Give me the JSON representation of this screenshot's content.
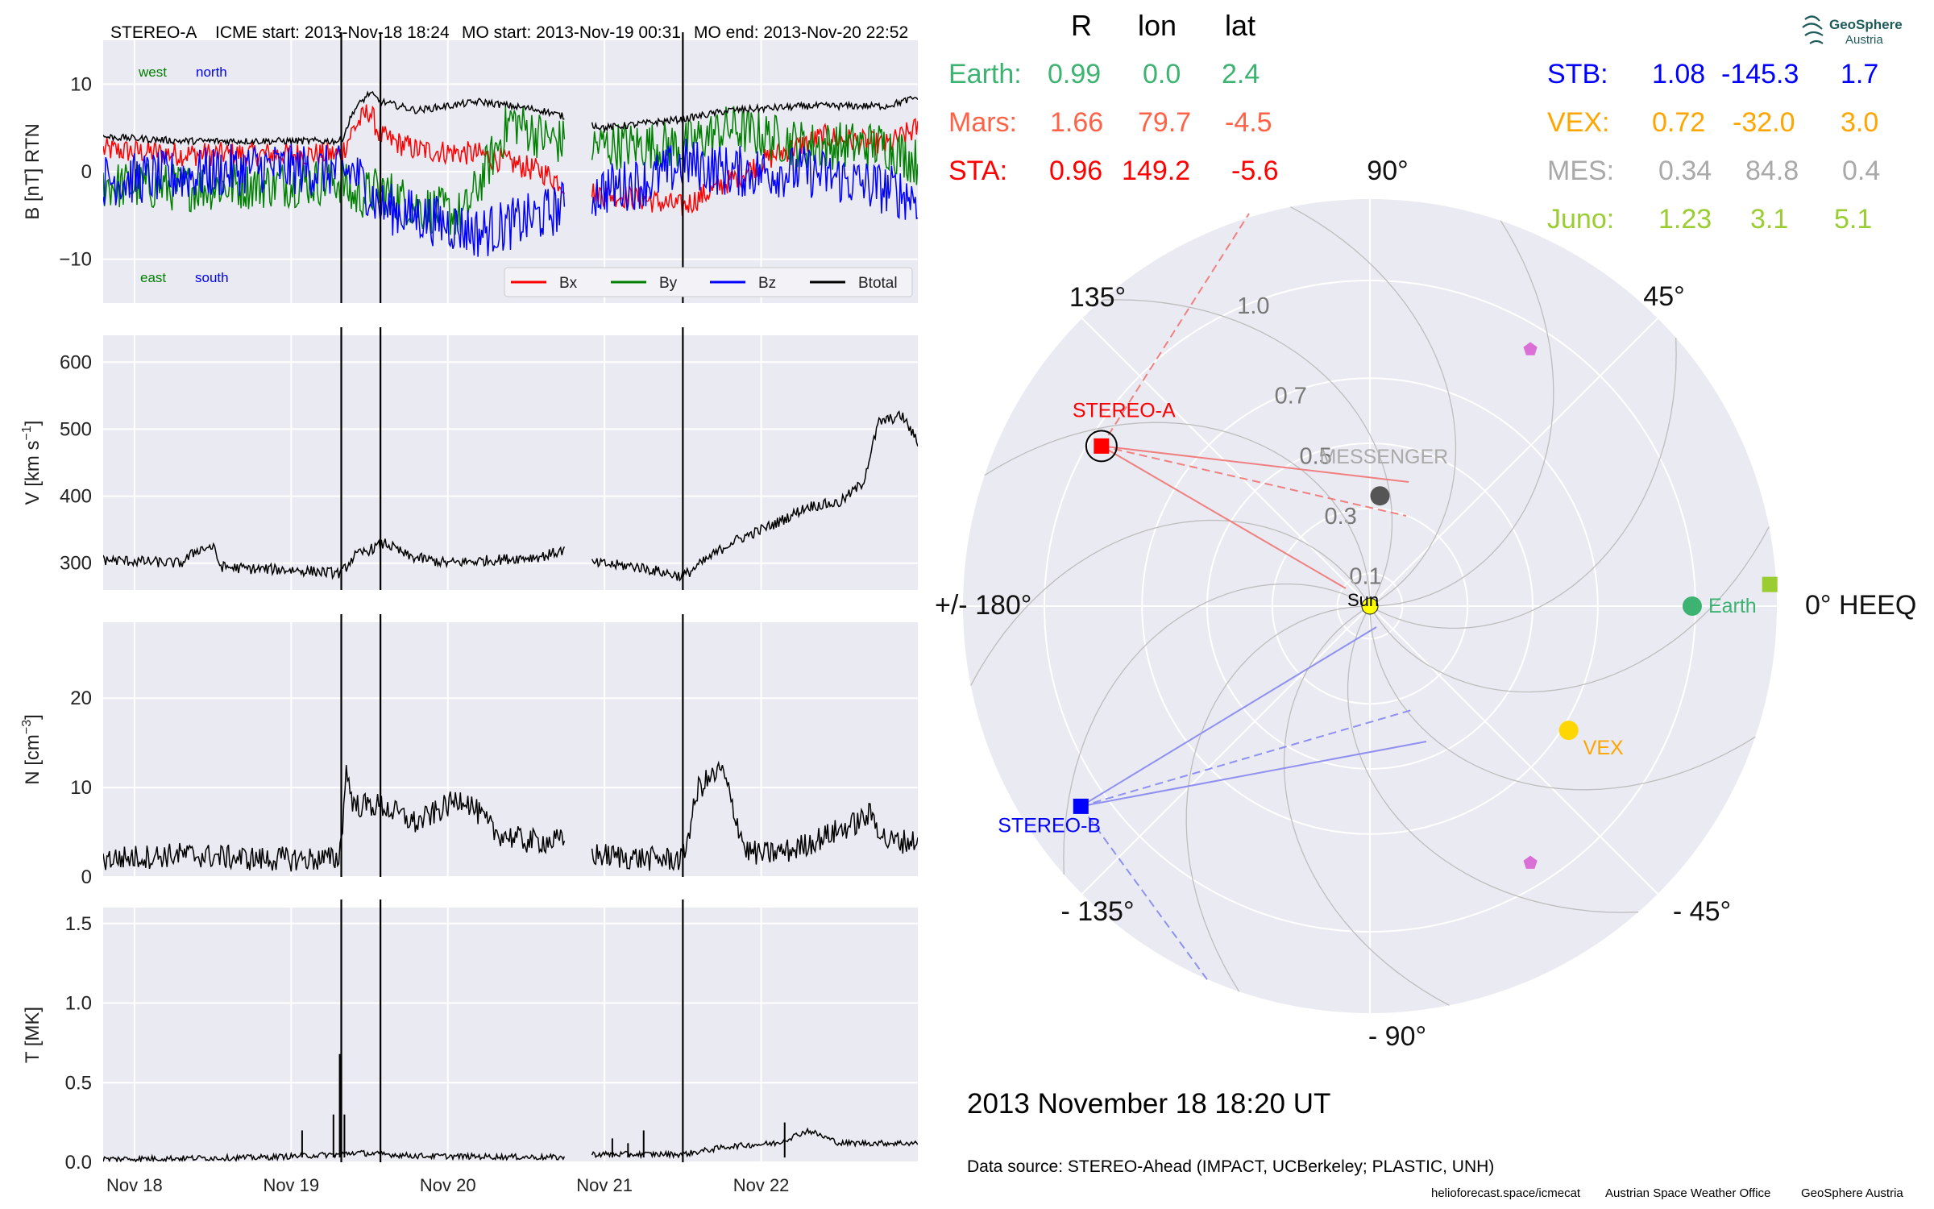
{
  "header": {
    "spacecraft": "STEREO-A",
    "icme_start": "ICME start: 2013-Nov-18 18:24",
    "mo_start": "MO start: 2013-Nov-19 00:31",
    "mo_end": "MO end: 2013-Nov-20 22:52"
  },
  "colors": {
    "panel_bg": "#eaeaf2",
    "grid": "#ffffff",
    "bx": "#ff0000",
    "by": "#008000",
    "bz": "#0000ff",
    "btotal": "#000000",
    "earth": "#3cb371",
    "mars": "#ff6347",
    "sta": "#ff0000",
    "stb": "#0000ff",
    "vex": "#ffa500",
    "mes": "#a9a9a9",
    "juno": "#9acd32",
    "messenger_dot": "#555555",
    "pentagon": "#da70d6"
  },
  "chart_data": [
    {
      "type": "line",
      "panel": "magnetic-field",
      "ylabel": "B [nT] RTN",
      "ylim": [
        -15,
        15
      ],
      "yticks": [
        -10,
        0,
        10
      ],
      "xlim": [
        0,
        5.2
      ],
      "xticks": [
        0.2,
        1.2,
        2.2,
        3.2,
        4.2
      ],
      "xtick_labels": [
        "Nov 18",
        "Nov 19",
        "Nov 20",
        "Nov 21",
        "Nov 22"
      ],
      "grid": true,
      "annotations": {
        "top_left_green": "west",
        "top_left_blue": "north",
        "bottom_left_green": "east",
        "bottom_left_blue": "south"
      },
      "legend": {
        "placement": "bottom-right",
        "entries": [
          "Bx",
          "By",
          "Bz",
          "Btotal"
        ]
      },
      "event_lines": [
        1.52,
        1.77,
        3.7
      ],
      "gaps": [
        [
          2.95,
          3.12
        ]
      ],
      "series": [
        {
          "name": "Bx",
          "x": [
            0,
            0.5,
            1.0,
            1.52,
            1.6,
            1.7,
            1.77,
            2.0,
            2.4,
            2.8,
            3.0,
            3.4,
            3.7,
            4.0,
            4.3,
            4.6,
            5.0,
            5.2
          ],
          "y": [
            2.5,
            2.0,
            2.0,
            2.0,
            5,
            7,
            4,
            2.5,
            2,
            0,
            -2,
            -3,
            -4,
            -1,
            2,
            4,
            3,
            5
          ],
          "noise": 1.4
        },
        {
          "name": "By",
          "x": [
            0,
            0.5,
            1.0,
            1.52,
            1.6,
            1.77,
            2.0,
            2.3,
            2.6,
            2.8,
            3.0,
            3.4,
            3.7,
            4.0,
            4.5,
            5.0,
            5.2
          ],
          "y": [
            -1.5,
            -1.8,
            -1.5,
            -1,
            -3,
            -2,
            -4,
            -5,
            6,
            4,
            3,
            3,
            3,
            5,
            3,
            3,
            1
          ],
          "noise": 2.8
        },
        {
          "name": "Bz",
          "x": [
            0,
            0.5,
            1.0,
            1.52,
            1.6,
            1.77,
            2.0,
            2.4,
            2.8,
            3.2,
            3.5,
            3.7,
            4.0,
            4.5,
            5.0,
            5.2
          ],
          "y": [
            -1,
            -0.5,
            0.5,
            0,
            0,
            -4,
            -5,
            -7,
            -5,
            -2,
            -1,
            1,
            0,
            0,
            -2,
            -3
          ],
          "noise": 3.0
        },
        {
          "name": "Btotal",
          "x": [
            0,
            0.5,
            1.0,
            1.52,
            1.6,
            1.7,
            1.77,
            2.0,
            2.4,
            2.8,
            3.2,
            3.7,
            4.0,
            4.5,
            5.0,
            5.2
          ],
          "y": [
            4,
            3.5,
            3.5,
            3.5,
            7,
            9,
            8,
            7,
            8,
            7,
            5,
            6,
            7,
            7.5,
            7.5,
            8.5
          ],
          "noise": 0.4
        }
      ]
    },
    {
      "type": "line",
      "panel": "velocity",
      "ylabel": "V [km s",
      "ylabel_sup": "−1",
      "ylabel_tail": "]",
      "ylim": [
        260,
        640
      ],
      "yticks": [
        300,
        400,
        500,
        600
      ],
      "xlim": [
        0,
        5.2
      ],
      "xticks": [
        0.2,
        1.2,
        2.2,
        3.2,
        4.2
      ],
      "grid": true,
      "event_lines": [
        1.52,
        1.77,
        3.7
      ],
      "gaps": [
        [
          2.95,
          3.12
        ]
      ],
      "series": [
        {
          "name": "V",
          "x": [
            0,
            0.5,
            0.6,
            0.7,
            0.75,
            0.9,
            1.2,
            1.52,
            1.6,
            1.8,
            1.95,
            2.2,
            2.5,
            2.8,
            2.95,
            3.12,
            3.4,
            3.7,
            4.0,
            4.3,
            4.5,
            4.7,
            4.85,
            4.95,
            5.1,
            5.2
          ],
          "y": [
            305,
            300,
            320,
            325,
            295,
            292,
            290,
            285,
            310,
            330,
            310,
            300,
            305,
            310,
            320,
            300,
            295,
            280,
            330,
            360,
            385,
            390,
            420,
            510,
            520,
            480
          ],
          "noise": 8
        }
      ]
    },
    {
      "type": "line",
      "panel": "density",
      "ylabel": "N [cm",
      "ylabel_sup": "−3",
      "ylabel_tail": "]",
      "ylim": [
        0,
        28.5
      ],
      "yticks": [
        0,
        10,
        20
      ],
      "xlim": [
        0,
        5.2
      ],
      "xticks": [
        0.2,
        1.2,
        2.2,
        3.2,
        4.2
      ],
      "grid": true,
      "event_lines": [
        1.52,
        1.77,
        3.7
      ],
      "gaps": [
        [
          2.95,
          3.12
        ]
      ],
      "series": [
        {
          "name": "N",
          "x": [
            0,
            0.5,
            1.0,
            1.5,
            1.52,
            1.55,
            1.6,
            1.77,
            2.0,
            2.1,
            2.3,
            2.5,
            2.7,
            2.95,
            3.12,
            3.5,
            3.7,
            3.8,
            3.95,
            4.1,
            4.2,
            4.4,
            4.8,
            4.9,
            5.0,
            5.2
          ],
          "y": [
            2,
            2.5,
            2,
            2,
            4,
            12,
            8,
            8,
            6,
            7,
            9,
            5,
            4,
            4,
            2.5,
            2,
            2,
            10,
            12,
            3,
            2.5,
            3,
            6,
            7,
            4,
            4
          ],
          "noise": 1.4
        }
      ]
    },
    {
      "type": "line",
      "panel": "temperature",
      "ylabel": "T [MK]",
      "ylim": [
        0,
        1.6
      ],
      "yticks": [
        0.0,
        0.5,
        1.0,
        1.5
      ],
      "xlim": [
        0,
        5.2
      ],
      "xticks": [
        0.2,
        1.2,
        2.2,
        3.2,
        4.2
      ],
      "xtick_labels": [
        "Nov 18",
        "Nov 19",
        "Nov 20",
        "Nov 21",
        "Nov 22"
      ],
      "grid": true,
      "event_lines": [
        1.52,
        1.77,
        3.7
      ],
      "gaps": [
        [
          2.95,
          3.12
        ]
      ],
      "spikes": [
        [
          1.27,
          0.2
        ],
        [
          1.47,
          0.3
        ],
        [
          1.51,
          0.68
        ],
        [
          1.54,
          0.3
        ],
        [
          3.25,
          0.15
        ],
        [
          3.35,
          0.12
        ],
        [
          3.45,
          0.2
        ],
        [
          4.35,
          0.25
        ]
      ],
      "series": [
        {
          "name": "T",
          "x": [
            0,
            1.0,
            1.52,
            1.6,
            2.0,
            2.95,
            3.12,
            3.7,
            4.0,
            4.3,
            4.5,
            4.7,
            5.2
          ],
          "y": [
            0.02,
            0.03,
            0.05,
            0.06,
            0.04,
            0.03,
            0.05,
            0.05,
            0.1,
            0.12,
            0.2,
            0.12,
            0.12
          ],
          "noise": 0.018
        }
      ]
    },
    {
      "type": "scatter",
      "panel": "polar-position",
      "projection": "polar",
      "radial_tick_labels": [
        "0.1",
        "0.3",
        "0.5",
        "0.7",
        "1.0"
      ],
      "radial_ticks": [
        0.1,
        0.3,
        0.5,
        0.7,
        1.0
      ],
      "rmax": 1.25,
      "angle_labels": [
        "0° HEEQ",
        "45°",
        "90°",
        "135°",
        "+/- 180°",
        "- 135°",
        "- 90°",
        "- 45°"
      ],
      "grid": true,
      "points": [
        {
          "name": "Sun",
          "r": 0.0,
          "lon": 0.0,
          "marker": "circle",
          "label": "Sun"
        },
        {
          "name": "Earth",
          "r": 0.99,
          "lon": 0.0,
          "marker": "circle",
          "label": "Earth"
        },
        {
          "name": "STEREO-A",
          "r": 0.96,
          "lon": 149.2,
          "marker": "square",
          "label": "STEREO-A"
        },
        {
          "name": "STEREO-B",
          "r": 1.08,
          "lon": -145.3,
          "marker": "square",
          "label": "STEREO-B"
        },
        {
          "name": "VEX",
          "r": 0.72,
          "lon": -32.0,
          "marker": "circle",
          "label": "VEX"
        },
        {
          "name": "MESSENGER",
          "r": 0.34,
          "lon": 84.8,
          "marker": "circle",
          "label": "MESSENGER"
        },
        {
          "name": "Juno",
          "r": 1.23,
          "lon": 3.1,
          "marker": "square",
          "label": ""
        },
        {
          "name": "Pentagon-upper",
          "r": 0.93,
          "lon": 58,
          "marker": "pentagon",
          "label": ""
        },
        {
          "name": "Pentagon-lower",
          "r": 0.93,
          "lon": -58,
          "marker": "pentagon",
          "label": ""
        }
      ]
    }
  ],
  "position_table": {
    "columns": [
      "R",
      "lon",
      "lat"
    ],
    "left_rows": [
      {
        "name": "Earth:",
        "r": "0.99",
        "lon": "0.0",
        "lat": "2.4"
      },
      {
        "name": "Mars:",
        "r": "1.66",
        "lon": "79.7",
        "lat": "-4.5"
      },
      {
        "name": "STA:",
        "r": "0.96",
        "lon": "149.2",
        "lat": "-5.6"
      }
    ],
    "right_rows": [
      {
        "name": "STB:",
        "r": "1.08",
        "lon": "-145.3",
        "lat": "1.7"
      },
      {
        "name": "VEX:",
        "r": "0.72",
        "lon": "-32.0",
        "lat": "3.0"
      },
      {
        "name": "MES:",
        "r": "0.34",
        "lon": "84.8",
        "lat": "0.4"
      },
      {
        "name": "Juno:",
        "r": "1.23",
        "lon": "3.1",
        "lat": "5.1"
      }
    ]
  },
  "logo": {
    "name": "GeoSphere",
    "sub": "Austria"
  },
  "timestamp": "2013 November 18  18:20 UT",
  "data_source": "Data source: STEREO-Ahead (IMPACT, UCBerkeley; PLASTIC, UNH)",
  "footer": {
    "site": "helioforecast.space/icmecat",
    "office": "Austrian Space Weather Office",
    "org": "GeoSphere Austria"
  }
}
